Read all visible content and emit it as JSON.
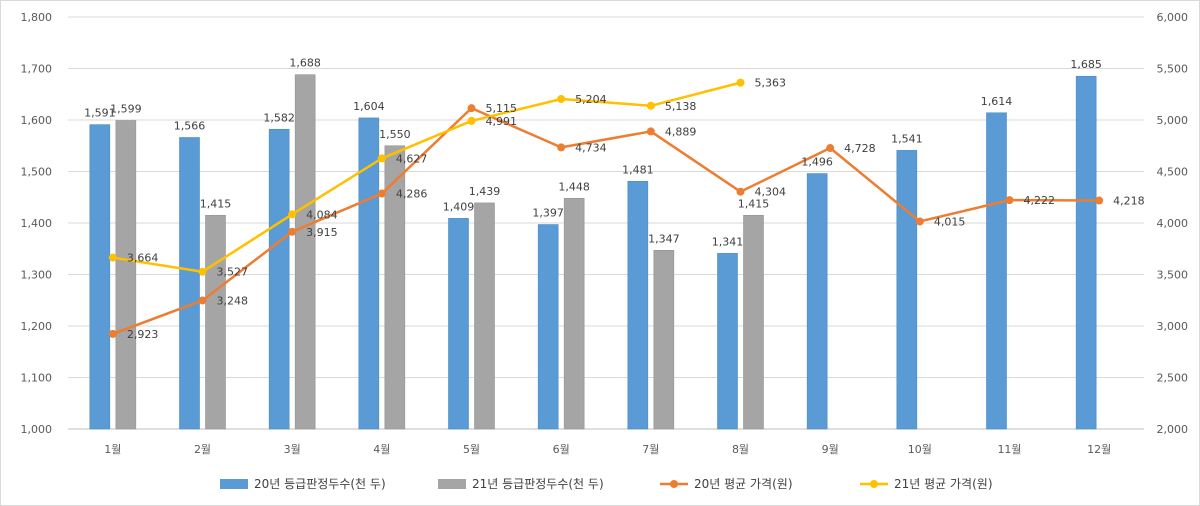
{
  "chart_data": {
    "type": "bar",
    "categories": [
      "1월",
      "2월",
      "3월",
      "4월",
      "5월",
      "6월",
      "7월",
      "8월",
      "9월",
      "10월",
      "11월",
      "12월"
    ],
    "y_left": {
      "ylim": [
        1000,
        1800
      ],
      "ticks": [
        "1,000",
        "1,100",
        "1,200",
        "1,300",
        "1,400",
        "1,500",
        "1,600",
        "1,700",
        "1,800"
      ]
    },
    "y_right": {
      "ylim": [
        2000,
        6000
      ],
      "ticks": [
        "2,000",
        "2,500",
        "3,000",
        "3,500",
        "4,000",
        "4,500",
        "5,000",
        "5,500",
        "6,000"
      ]
    },
    "grid": true,
    "legend_position": "bottom",
    "series": [
      {
        "name": "20년 등급판정두수(천 두)",
        "type": "bar",
        "axis": "left",
        "color": "#5B9BD5",
        "values": [
          1591,
          1566,
          1582,
          1604,
          1409,
          1397,
          1481,
          1341,
          1496,
          1541,
          1614,
          1685
        ],
        "labels": [
          "1,591",
          "1,566",
          "1,582",
          "1,604",
          "1,409",
          "1,397",
          "1,481",
          "1,341",
          "1,496",
          "1,541",
          "1,614",
          "1,685"
        ]
      },
      {
        "name": "21년 등급판정두수(천 두)",
        "type": "bar",
        "axis": "left",
        "color": "#A5A5A5",
        "values": [
          1599,
          1415,
          1688,
          1550,
          1439,
          1448,
          1347,
          1415,
          null,
          null,
          null,
          null
        ],
        "labels": [
          "1,599",
          "1,415",
          "1,688",
          "1,550",
          "1,439",
          "1,448",
          "1,347",
          "1,415",
          "",
          "",
          "",
          ""
        ]
      },
      {
        "name": "20년 평균 가격(원)",
        "type": "line",
        "axis": "right",
        "color": "#ED7D31",
        "values": [
          2923,
          3248,
          3915,
          4286,
          5115,
          4734,
          4889,
          4304,
          4728,
          4015,
          4222,
          4218
        ],
        "labels": [
          "2,923",
          "3,248",
          "3,915",
          "4,286",
          "5,115",
          "4,734",
          "4,889",
          "4,304",
          "4,728",
          "4,015",
          "4,222",
          "4,218"
        ]
      },
      {
        "name": "21년 평균 가격(원)",
        "type": "line",
        "axis": "right",
        "color": "#FFC000",
        "values": [
          3664,
          3527,
          4084,
          4627,
          4991,
          5204,
          5138,
          5363,
          null,
          null,
          null,
          null
        ],
        "labels": [
          "3,664",
          "3,527",
          "4,084",
          "4,627",
          "4,991",
          "5,204",
          "5,138",
          "5,363",
          "",
          "",
          "",
          ""
        ]
      }
    ]
  }
}
